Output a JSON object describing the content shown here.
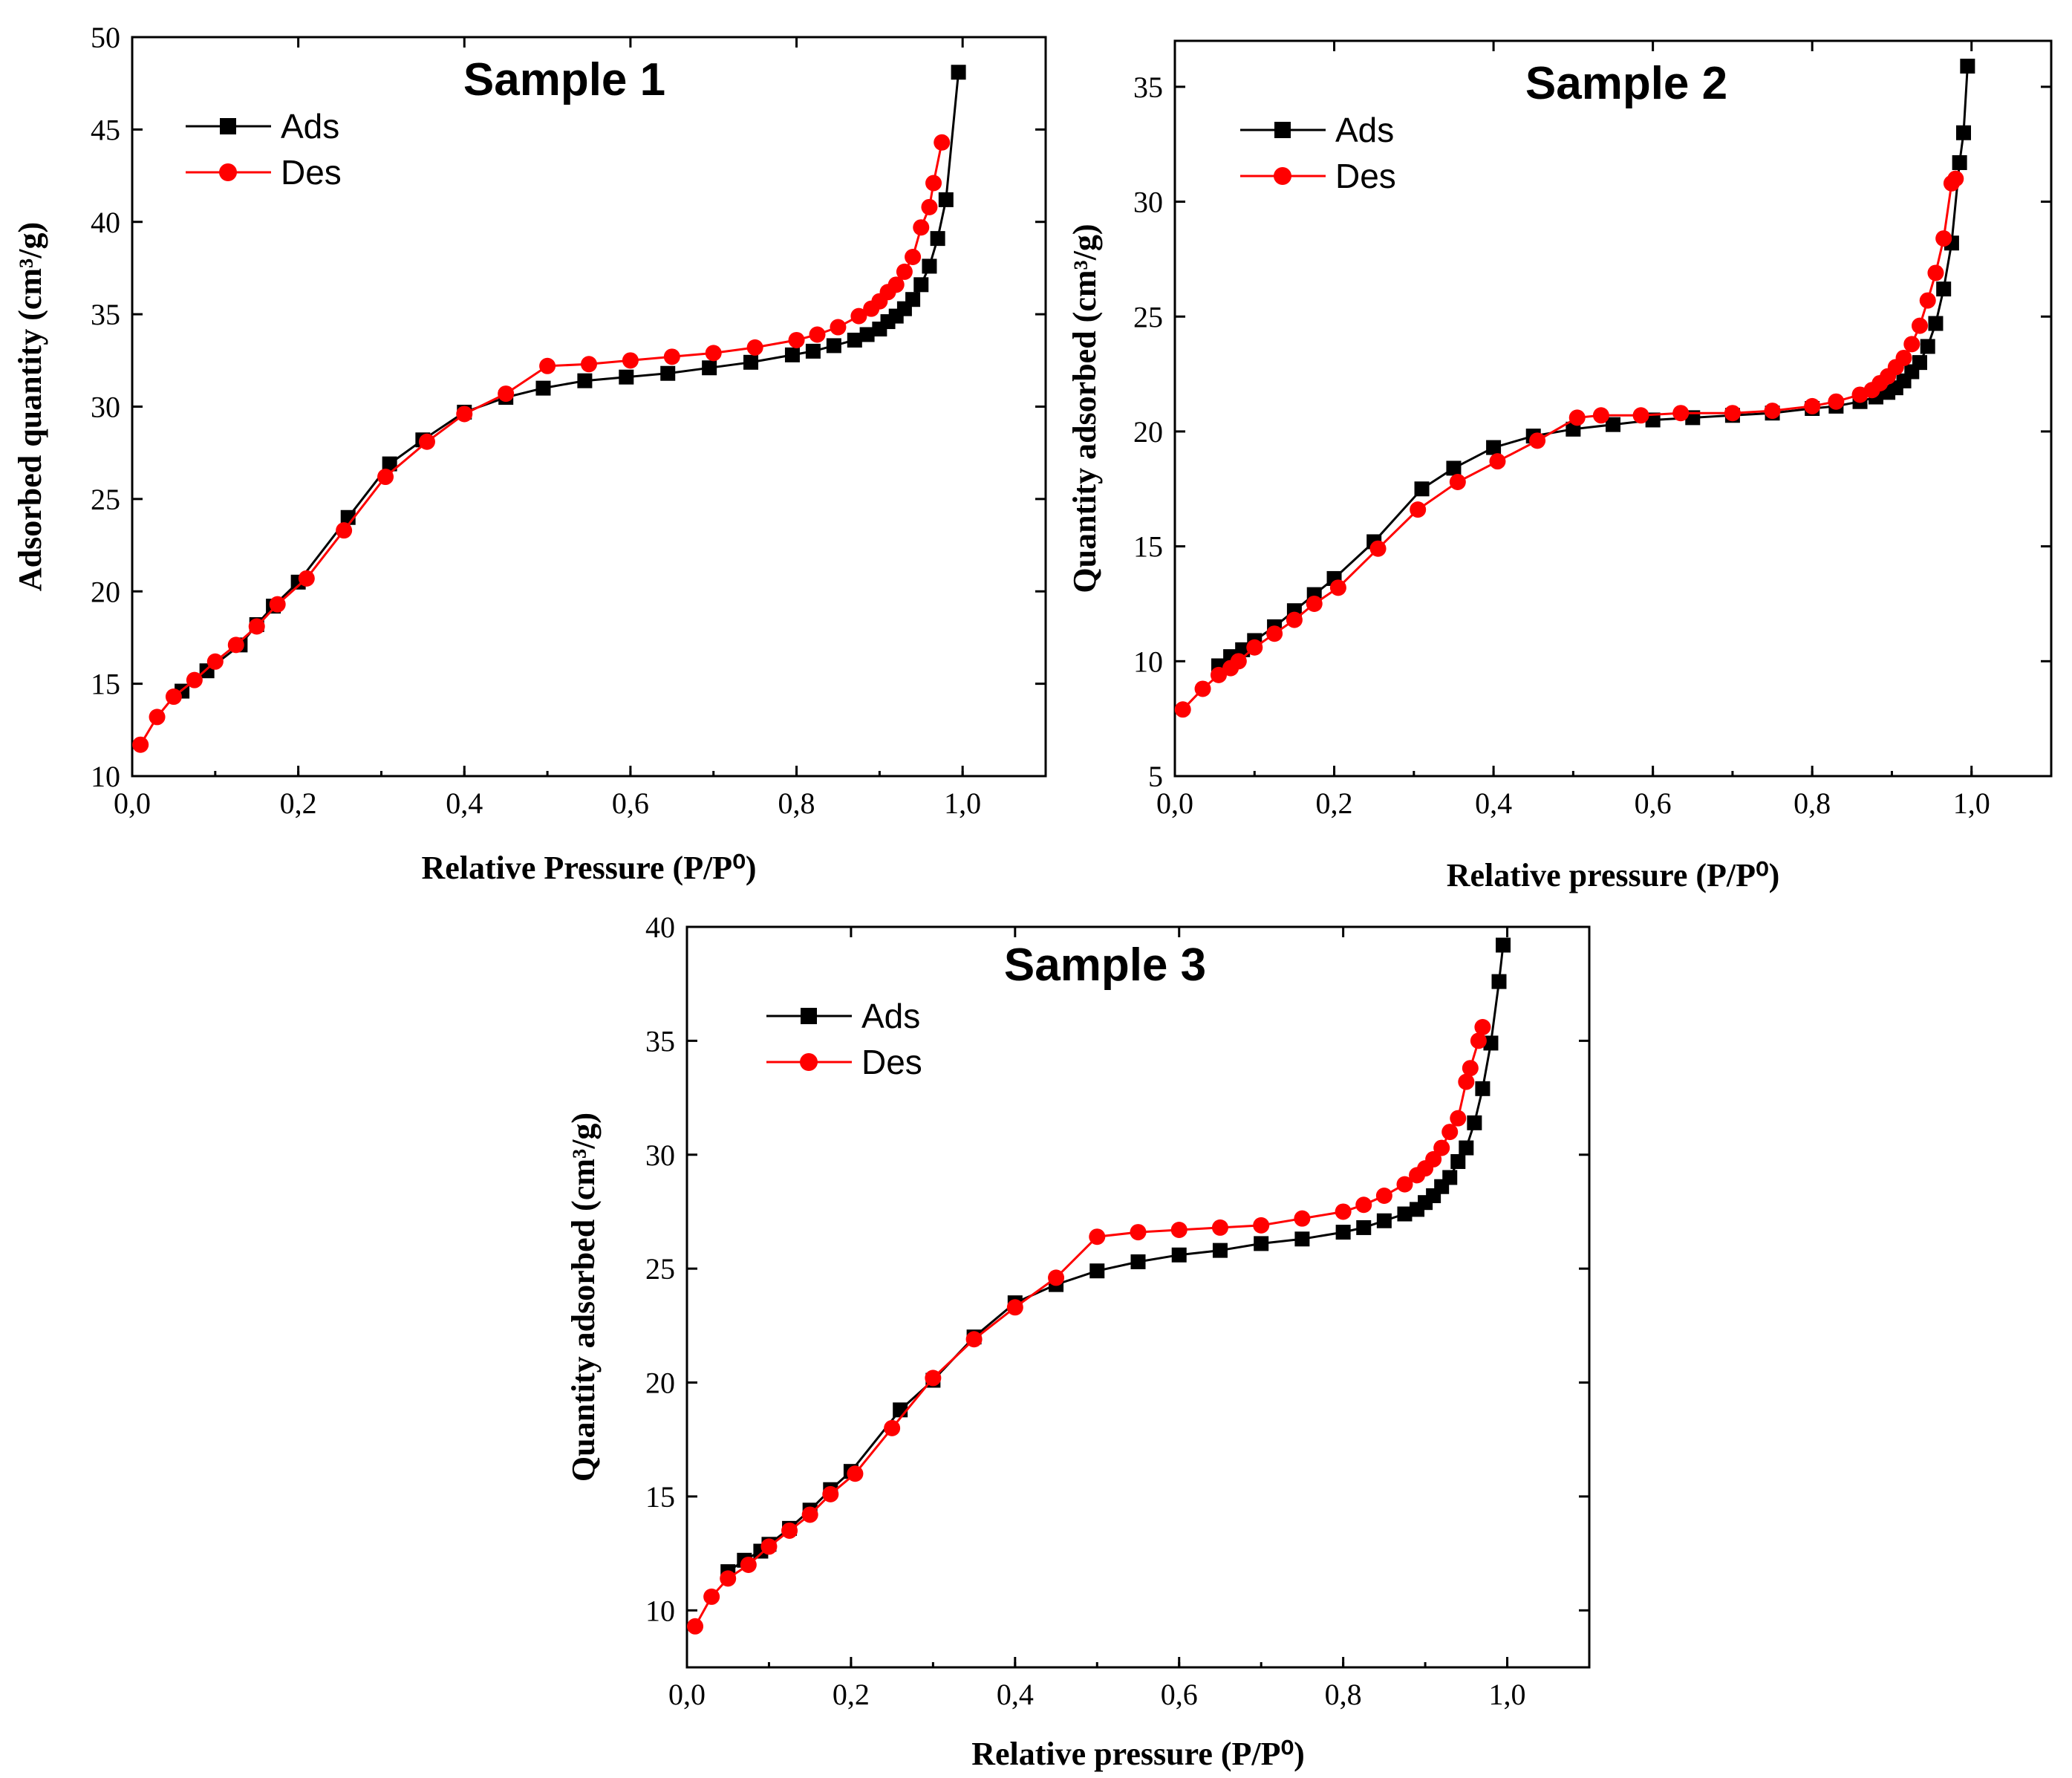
{
  "chart_data": [
    {
      "type": "line",
      "title": "Sample 1",
      "xlabel": "Relative Pressure (P/P⁰)",
      "ylabel": "Adsorbed quantity (cm³/g)",
      "xlim": [
        0,
        1.1
      ],
      "ylim": [
        10,
        50
      ],
      "xticks": [
        0.0,
        0.2,
        0.4,
        0.6,
        0.8,
        1.0
      ],
      "xtick_labels": [
        "0,0",
        "0,2",
        "0,4",
        "0,6",
        "0,8",
        "1,0"
      ],
      "yticks": [
        10,
        15,
        20,
        25,
        30,
        35,
        40,
        45,
        50
      ],
      "ytick_labels": [
        "10",
        "15",
        "20",
        "25",
        "30",
        "35",
        "40",
        "45",
        "50"
      ],
      "legend_position": "top-left",
      "series": [
        {
          "name": "Ads",
          "color": "#000000",
          "marker": "square",
          "x": [
            0.06,
            0.09,
            0.13,
            0.15,
            0.17,
            0.2,
            0.26,
            0.31,
            0.35,
            0.4,
            0.45,
            0.495,
            0.545,
            0.595,
            0.645,
            0.695,
            0.745,
            0.795,
            0.82,
            0.845,
            0.87,
            0.885,
            0.9,
            0.91,
            0.92,
            0.93,
            0.94,
            0.95,
            0.96,
            0.97,
            0.98,
            0.995
          ],
          "y": [
            14.6,
            15.7,
            17.1,
            18.2,
            19.2,
            20.5,
            24.0,
            26.9,
            28.2,
            29.7,
            30.5,
            31.0,
            31.4,
            31.6,
            31.8,
            32.1,
            32.4,
            32.8,
            33.0,
            33.3,
            33.6,
            33.9,
            34.2,
            34.6,
            34.9,
            35.3,
            35.8,
            36.6,
            37.6,
            39.1,
            41.2,
            48.1
          ]
        },
        {
          "name": "Des",
          "color": "#ff0000",
          "marker": "circle",
          "x": [
            0.01,
            0.03,
            0.05,
            0.075,
            0.1,
            0.125,
            0.15,
            0.175,
            0.21,
            0.255,
            0.305,
            0.355,
            0.4,
            0.45,
            0.5,
            0.55,
            0.6,
            0.65,
            0.7,
            0.75,
            0.8,
            0.825,
            0.85,
            0.875,
            0.89,
            0.9,
            0.91,
            0.92,
            0.93,
            0.94,
            0.95,
            0.96,
            0.965,
            0.975
          ],
          "y": [
            11.7,
            13.2,
            14.3,
            15.2,
            16.2,
            17.1,
            18.1,
            19.3,
            20.7,
            23.3,
            26.2,
            28.1,
            29.6,
            30.7,
            32.2,
            32.3,
            32.5,
            32.7,
            32.9,
            33.2,
            33.6,
            33.9,
            34.3,
            34.9,
            35.3,
            35.7,
            36.2,
            36.6,
            37.3,
            38.1,
            39.7,
            40.8,
            42.1,
            44.3
          ]
        }
      ]
    },
    {
      "type": "line",
      "title": "Sample 2",
      "xlabel": "Relative pressure (P/P⁰)",
      "ylabel": "Quantity adsorbed (cm³/g)",
      "xlim": [
        0,
        1.1
      ],
      "ylim": [
        5,
        37
      ],
      "xticks": [
        0.0,
        0.2,
        0.4,
        0.6,
        0.8,
        1.0
      ],
      "xtick_labels": [
        "0,0",
        "0,2",
        "0,4",
        "0,6",
        "0,8",
        "1,0"
      ],
      "yticks": [
        5,
        10,
        15,
        20,
        25,
        30,
        35
      ],
      "ytick_labels": [
        "5",
        "10",
        "15",
        "20",
        "25",
        "30",
        "35"
      ],
      "legend_position": "top-left",
      "series": [
        {
          "name": "Ads",
          "color": "#000000",
          "marker": "square",
          "x": [
            0.055,
            0.07,
            0.085,
            0.1,
            0.125,
            0.15,
            0.175,
            0.2,
            0.25,
            0.31,
            0.35,
            0.4,
            0.45,
            0.5,
            0.55,
            0.6,
            0.65,
            0.7,
            0.75,
            0.8,
            0.83,
            0.86,
            0.88,
            0.895,
            0.905,
            0.915,
            0.925,
            0.935,
            0.945,
            0.955,
            0.965,
            0.975,
            0.985,
            0.99,
            0.995
          ],
          "y": [
            9.8,
            10.2,
            10.5,
            10.9,
            11.5,
            12.2,
            12.9,
            13.6,
            15.2,
            17.5,
            18.4,
            19.3,
            19.8,
            20.1,
            20.3,
            20.5,
            20.6,
            20.7,
            20.8,
            21.0,
            21.1,
            21.3,
            21.5,
            21.7,
            21.9,
            22.2,
            22.6,
            23.0,
            23.7,
            24.7,
            26.2,
            28.2,
            31.7,
            33.0,
            35.9
          ]
        },
        {
          "name": "Des",
          "color": "#ff0000",
          "marker": "circle",
          "x": [
            0.01,
            0.035,
            0.055,
            0.07,
            0.08,
            0.1,
            0.125,
            0.15,
            0.175,
            0.205,
            0.255,
            0.305,
            0.355,
            0.405,
            0.455,
            0.505,
            0.535,
            0.585,
            0.635,
            0.7,
            0.75,
            0.8,
            0.83,
            0.86,
            0.875,
            0.885,
            0.895,
            0.905,
            0.915,
            0.925,
            0.935,
            0.945,
            0.955,
            0.965,
            0.975,
            0.98
          ],
          "y": [
            7.9,
            8.8,
            9.4,
            9.7,
            10.0,
            10.6,
            11.2,
            11.8,
            12.5,
            13.2,
            14.9,
            16.6,
            17.8,
            18.7,
            19.6,
            20.6,
            20.7,
            20.7,
            20.8,
            20.8,
            20.9,
            21.1,
            21.3,
            21.6,
            21.8,
            22.1,
            22.4,
            22.8,
            23.2,
            23.8,
            24.6,
            25.7,
            26.9,
            28.4,
            30.8,
            31.0
          ]
        }
      ]
    },
    {
      "type": "line",
      "title": "Sample 3",
      "xlabel": "Relative pressure (P/P⁰)",
      "ylabel": "Quantity adsorbed (cm³/g)",
      "xlim": [
        0,
        1.1
      ],
      "ylim": [
        7.5,
        40
      ],
      "xticks": [
        0.0,
        0.2,
        0.4,
        0.6,
        0.8,
        1.0
      ],
      "xtick_labels": [
        "0,0",
        "0,2",
        "0,4",
        "0,6",
        "0,8",
        "1,0"
      ],
      "yticks": [
        10,
        15,
        20,
        25,
        30,
        35,
        40
      ],
      "ytick_labels": [
        "10",
        "15",
        "20",
        "25",
        "30",
        "35",
        "40"
      ],
      "legend_position": "top-left",
      "series": [
        {
          "name": "Ads",
          "color": "#000000",
          "marker": "square",
          "x": [
            0.05,
            0.07,
            0.09,
            0.1,
            0.125,
            0.15,
            0.175,
            0.2,
            0.26,
            0.3,
            0.35,
            0.4,
            0.45,
            0.5,
            0.55,
            0.6,
            0.65,
            0.7,
            0.75,
            0.8,
            0.825,
            0.85,
            0.875,
            0.89,
            0.9,
            0.91,
            0.92,
            0.93,
            0.94,
            0.95,
            0.96,
            0.97,
            0.98,
            0.99,
            0.995
          ],
          "y": [
            11.7,
            12.2,
            12.6,
            12.9,
            13.6,
            14.4,
            15.3,
            16.1,
            18.8,
            20.1,
            22.0,
            23.5,
            24.3,
            24.9,
            25.3,
            25.6,
            25.8,
            26.1,
            26.3,
            26.6,
            26.8,
            27.1,
            27.4,
            27.6,
            27.9,
            28.2,
            28.6,
            29.0,
            29.7,
            30.3,
            31.4,
            32.9,
            34.9,
            37.6,
            39.2
          ]
        },
        {
          "name": "Des",
          "color": "#ff0000",
          "marker": "circle",
          "x": [
            0.01,
            0.03,
            0.05,
            0.075,
            0.1,
            0.125,
            0.15,
            0.175,
            0.205,
            0.25,
            0.3,
            0.35,
            0.4,
            0.45,
            0.5,
            0.55,
            0.6,
            0.65,
            0.7,
            0.75,
            0.8,
            0.825,
            0.85,
            0.875,
            0.89,
            0.9,
            0.91,
            0.92,
            0.93,
            0.94,
            0.95,
            0.955,
            0.965,
            0.97
          ],
          "y": [
            9.3,
            10.6,
            11.4,
            12.0,
            12.8,
            13.5,
            14.2,
            15.1,
            16.0,
            18.0,
            20.2,
            21.9,
            23.3,
            24.6,
            26.4,
            26.6,
            26.7,
            26.8,
            26.9,
            27.2,
            27.5,
            27.8,
            28.2,
            28.7,
            29.1,
            29.4,
            29.8,
            30.3,
            31.0,
            31.6,
            33.2,
            33.8,
            35.0,
            35.6
          ]
        }
      ]
    }
  ]
}
